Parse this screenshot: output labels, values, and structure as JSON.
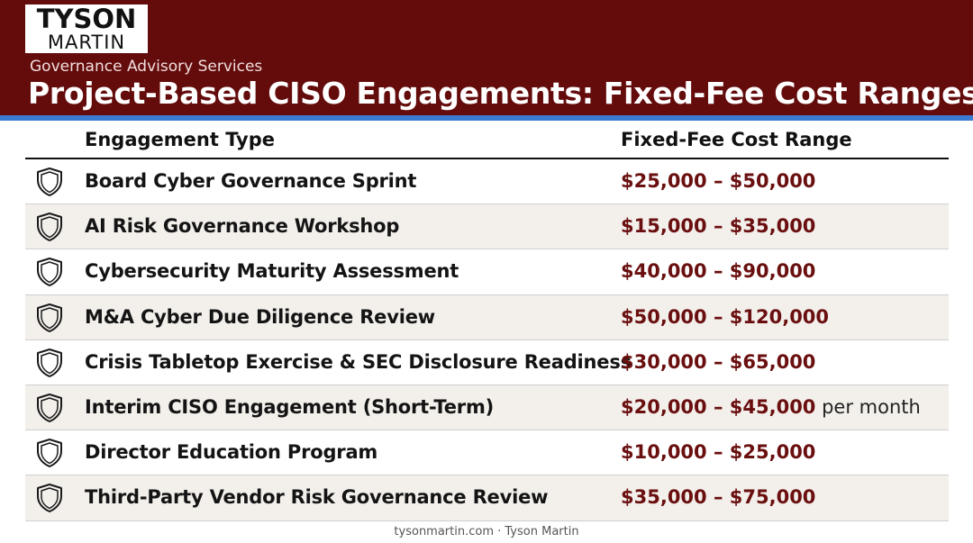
{
  "header": {
    "logo_line1": "TYSON",
    "logo_line2": "MARTIN",
    "subtitle": "Governance Advisory Services",
    "title": "Project-Based CISO Engagements: Fixed-Fee Cost Ranges"
  },
  "colors": {
    "header_bg": "#640c0c",
    "accent_stripe": "#3a7ad0",
    "cost_text": "#6a0f0f"
  },
  "table": {
    "columns": [
      "Engagement Type",
      "Fixed-Fee Cost Range"
    ],
    "row_icon": "shield-icon",
    "rows": [
      {
        "type": "Board Cyber Governance Sprint",
        "cost": "$25,000 – $50,000",
        "suffix": ""
      },
      {
        "type": "AI Risk Governance Workshop",
        "cost": "$15,000 –  $35,000",
        "suffix": ""
      },
      {
        "type": "Cybersecurity Maturity Assessment",
        "cost": "$40,000 – $90,000",
        "suffix": ""
      },
      {
        "type": "M&A Cyber Due Diligence Review",
        "cost": "$50,000 – $120,000",
        "suffix": ""
      },
      {
        "type": "Crisis Tabletop Exercise & SEC Disclosure Readiness",
        "cost": "$30,000 – $65,000",
        "suffix": ""
      },
      {
        "type": "Interim CISO Engagement (Short-Term)",
        "cost": "$20,000 – $45,000",
        "suffix": " per month"
      },
      {
        "type": "Director Education Program",
        "cost": "$10,000 – $25,000",
        "suffix": ""
      },
      {
        "type": "Third-Party Vendor Risk Governance Review",
        "cost": "$35,000 – $75,000",
        "suffix": ""
      }
    ]
  },
  "footer": {
    "text": "tysonmartin.com · Tyson Martin"
  }
}
